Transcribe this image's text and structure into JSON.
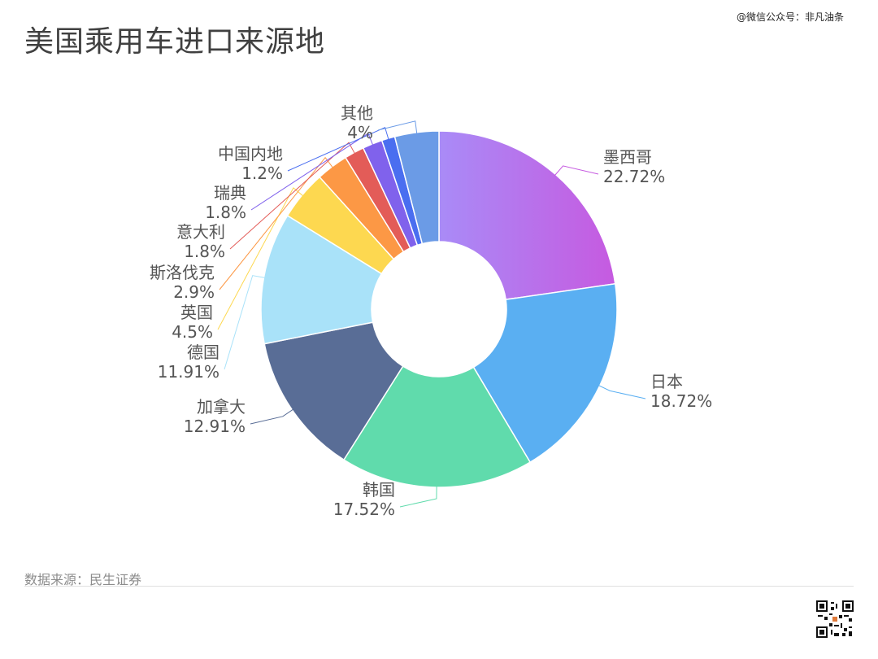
{
  "header": {
    "title": "美国乘用车进口来源地",
    "watermark": "@微信公众号：非凡油条"
  },
  "footer": {
    "source": "数据来源：民生证券"
  },
  "chart_data": {
    "type": "pie",
    "donut": true,
    "title": "美国乘用车进口来源地",
    "unit": "%",
    "legend": "none",
    "slices": [
      {
        "label": "墨西哥",
        "value": 22.72,
        "value_label": "22.72%",
        "color": "#a98bf7",
        "color2": "#c65ae0"
      },
      {
        "label": "日本",
        "value": 18.72,
        "value_label": "18.72%",
        "color": "#5aaff2"
      },
      {
        "label": "韩国",
        "value": 17.52,
        "value_label": "17.52%",
        "color": "#60dbac"
      },
      {
        "label": "加拿大",
        "value": 12.91,
        "value_label": "12.91%",
        "color": "#596d96"
      },
      {
        "label": "德国",
        "value": 11.91,
        "value_label": "11.91%",
        "color": "#a9e2f9"
      },
      {
        "label": "英国",
        "value": 4.5,
        "value_label": "4.5%",
        "color": "#fdd850"
      },
      {
        "label": "斯洛伐克",
        "value": 2.9,
        "value_label": "2.9%",
        "color": "#fc9845"
      },
      {
        "label": "意大利",
        "value": 1.8,
        "value_label": "1.8%",
        "color": "#e35c58"
      },
      {
        "label": "瑞典",
        "value": 1.8,
        "value_label": "1.8%",
        "color": "#8062ec"
      },
      {
        "label": "中国内地",
        "value": 1.2,
        "value_label": "1.2%",
        "color": "#4a6ef0"
      },
      {
        "label": "其他",
        "value": 4,
        "value_label": "4%",
        "color": "#6b9be6"
      }
    ]
  }
}
